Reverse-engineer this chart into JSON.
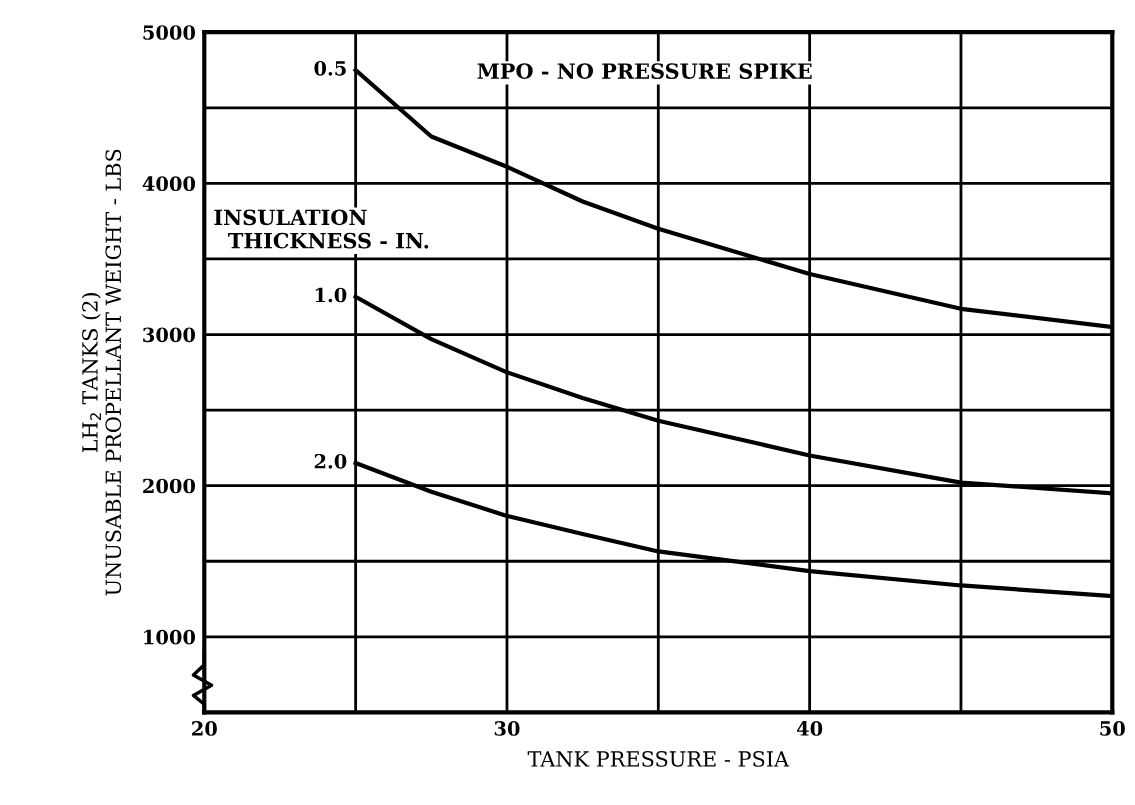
{
  "chart_data": {
    "type": "line",
    "xlabel": "TANK PRESSURE - PSIA",
    "ylabel": "LH$_{2}$ TANKS (2)\nUNUSABLE PROPELLANT WEIGHT - LBS",
    "annotations": [
      "MPO - NO PRESSURE SPIKE",
      "INSULATION\n  THICKNESS - IN."
    ],
    "x": [
      25,
      27.5,
      30,
      32.5,
      35,
      40,
      45,
      50
    ],
    "series": [
      {
        "name": "0.5",
        "color": "#000000",
        "values": [
          4750,
          4310,
          4110,
          3880,
          3700,
          3400,
          3170,
          3050
        ]
      },
      {
        "name": "1.0",
        "color": "#000000",
        "values": [
          3250,
          2970,
          2750,
          2580,
          2430,
          2200,
          2020,
          1950
        ]
      },
      {
        "name": "2.0",
        "color": "#000000",
        "values": [
          2150,
          1960,
          1800,
          1680,
          1565,
          1435,
          1340,
          1270
        ]
      }
    ],
    "xlim": [
      20,
      50
    ],
    "ylim": [
      500,
      5000
    ],
    "xticks": [
      20,
      {
        "value": 25,
        "label": null
      },
      30,
      {
        "value": 35,
        "label": null
      },
      40,
      {
        "value": 45,
        "label": null
      },
      50
    ],
    "yticks": [
      1000,
      {
        "value": 1500,
        "label": null
      },
      2000,
      {
        "value": 2500,
        "label": null
      },
      3000,
      {
        "value": 3500,
        "label": null
      },
      4000,
      {
        "value": 4500,
        "label": null
      },
      5000
    ],
    "grid": true,
    "legend": false,
    "marker": "none",
    "line_style": "solid"
  }
}
